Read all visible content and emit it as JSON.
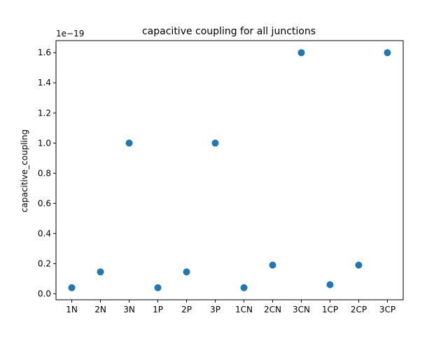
{
  "chart_data": {
    "type": "scatter",
    "title": "capacitive coupling for all junctions",
    "xlabel": "",
    "ylabel": "capacitive_coupling",
    "offset_label": "1e−19",
    "categories": [
      "1N",
      "2N",
      "3N",
      "1P",
      "2P",
      "3P",
      "1CN",
      "2CN",
      "3CN",
      "1CP",
      "2CP",
      "3CP"
    ],
    "values": [
      0.04,
      0.145,
      1.0,
      0.04,
      0.145,
      1.0,
      0.04,
      0.19,
      1.6,
      0.06,
      0.19,
      1.6
    ],
    "ylim": [
      -0.04,
      1.68
    ],
    "yticks": [
      0.0,
      0.2,
      0.4,
      0.6,
      0.8,
      1.0,
      1.2,
      1.4,
      1.6
    ],
    "ytick_labels": [
      "0.0",
      "0.2",
      "0.4",
      "0.6",
      "0.8",
      "1.0",
      "1.2",
      "1.4",
      "1.6"
    ],
    "grid": false,
    "legend": "none",
    "marker_color": "#1f77b4"
  }
}
